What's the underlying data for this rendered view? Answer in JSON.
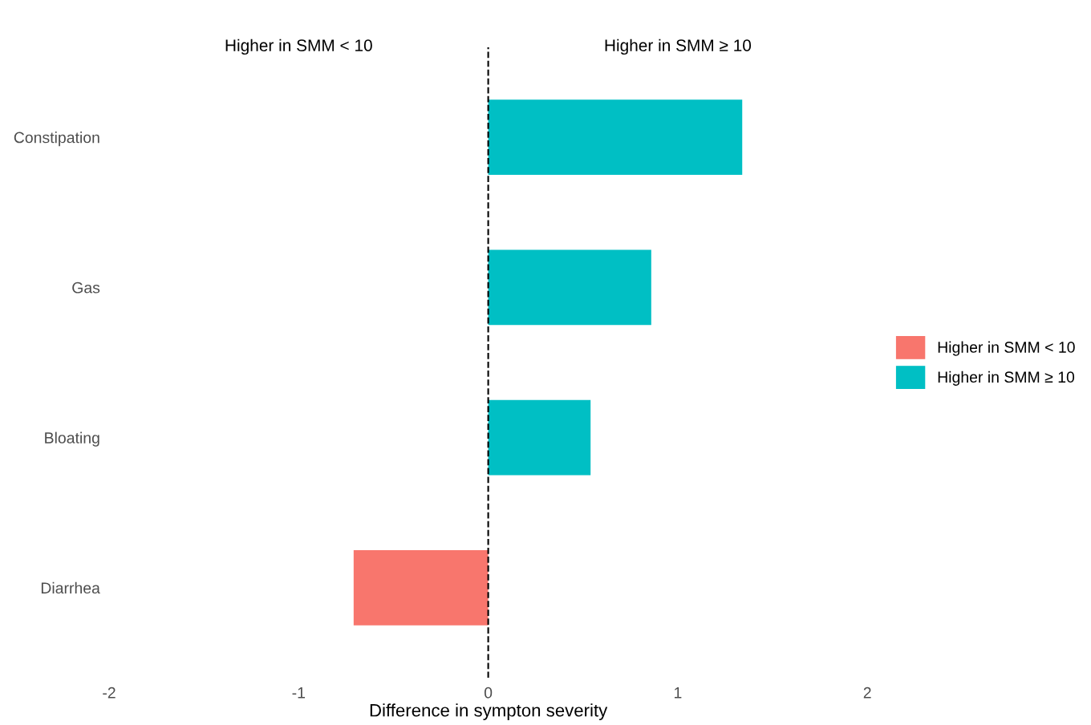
{
  "chart_data": {
    "type": "bar",
    "orientation": "horizontal",
    "categories": [
      "Constipation",
      "Gas",
      "Bloating",
      "Diarrhea"
    ],
    "series": [
      {
        "name": "Higher in SMM < 10",
        "color": "#f8766d",
        "values": [
          null,
          null,
          null,
          -0.71
        ]
      },
      {
        "name": "Higher in SMM ≥ 10",
        "color": "#00bfc4",
        "values": [
          1.34,
          0.86,
          0.54,
          null
        ]
      }
    ],
    "xlabel": "Difference in sympton severity",
    "xlim": [
      -2,
      2
    ],
    "xticks": [
      -2,
      -1,
      0,
      1,
      2
    ],
    "ref_lines": [
      {
        "axis": "x",
        "value": 0,
        "line_style": "dashed",
        "color": "#000000"
      }
    ],
    "annotations": [
      "Higher in SMM < 10",
      "Higher in SMM ≥ 10"
    ],
    "grid": false,
    "legend": "right"
  }
}
